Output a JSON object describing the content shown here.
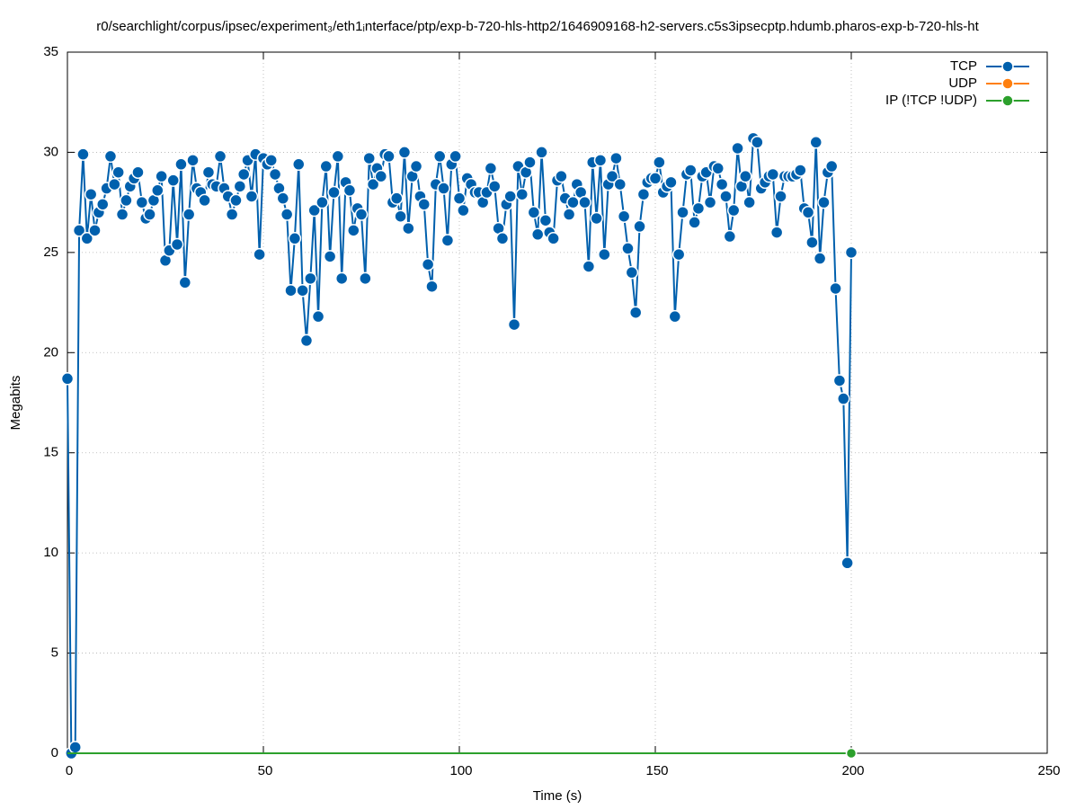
{
  "chart_data": {
    "type": "line",
    "title": "r0/searchlight/corpus/ipsec/experiment₃/eth1ᵢnterface/ptp/exp-b-720-hls-http2/1646909168-h2-servers.c5s3ipsecptp.hdumb.pharos-exp-b-720-hls-ht",
    "xlabel": "Time (s)",
    "ylabel": "Megabits",
    "xlim": [
      0,
      250
    ],
    "xticks": [
      0,
      50,
      100,
      150,
      200,
      250
    ],
    "ylim": [
      0,
      35
    ],
    "yticks": [
      0,
      5,
      10,
      15,
      20,
      25,
      30,
      35
    ],
    "grid": true,
    "legend": "top-right",
    "x": [
      0,
      1,
      2,
      3,
      4,
      5,
      6,
      7,
      8,
      9,
      10,
      11,
      12,
      13,
      14,
      15,
      16,
      17,
      18,
      19,
      20,
      21,
      22,
      23,
      24,
      25,
      26,
      27,
      28,
      29,
      30,
      31,
      32,
      33,
      34,
      35,
      36,
      37,
      38,
      39,
      40,
      41,
      42,
      43,
      44,
      45,
      46,
      47,
      48,
      49,
      50,
      51,
      52,
      53,
      54,
      55,
      56,
      57,
      58,
      59,
      60,
      61,
      62,
      63,
      64,
      65,
      66,
      67,
      68,
      69,
      70,
      71,
      72,
      73,
      74,
      75,
      76,
      77,
      78,
      79,
      80,
      81,
      82,
      83,
      84,
      85,
      86,
      87,
      88,
      89,
      90,
      91,
      92,
      93,
      94,
      95,
      96,
      97,
      98,
      99,
      100,
      101,
      102,
      103,
      104,
      105,
      106,
      107,
      108,
      109,
      110,
      111,
      112,
      113,
      114,
      115,
      116,
      117,
      118,
      119,
      120,
      121,
      122,
      123,
      124,
      125,
      126,
      127,
      128,
      129,
      130,
      131,
      132,
      133,
      134,
      135,
      136,
      137,
      138,
      139,
      140,
      141,
      142,
      143,
      144,
      145,
      146,
      147,
      148,
      149,
      150,
      151,
      152,
      153,
      154,
      155,
      156,
      157,
      158,
      159,
      160,
      161,
      162,
      163,
      164,
      165,
      166,
      167,
      168,
      169,
      170,
      171,
      172,
      173,
      174,
      175,
      176,
      177,
      178,
      179,
      180,
      181,
      182,
      183,
      184,
      185,
      186,
      187,
      188,
      189,
      190,
      191,
      192,
      193,
      194,
      195,
      196,
      197,
      198,
      199,
      200
    ],
    "series": [
      {
        "name": "TCP",
        "color": "#0060ad",
        "values": [
          18.7,
          0,
          0.3,
          26.1,
          29.9,
          25.7,
          27.9,
          26.1,
          27.0,
          27.4,
          28.2,
          29.8,
          28.4,
          29.0,
          26.9,
          27.6,
          28.3,
          28.7,
          29.0,
          27.5,
          26.7,
          26.9,
          27.6,
          28.1,
          28.8,
          24.6,
          25.1,
          28.6,
          25.4,
          29.4,
          23.5,
          26.9,
          29.6,
          28.2,
          28.0,
          27.6,
          29.0,
          28.4,
          28.3,
          29.8,
          28.2,
          27.8,
          26.9,
          27.6,
          28.3,
          28.9,
          29.6,
          27.8,
          29.9,
          24.9,
          29.7,
          29.4,
          29.6,
          28.9,
          28.2,
          27.7,
          26.9,
          23.1,
          25.7,
          29.4,
          23.1,
          20.6,
          23.7,
          27.1,
          21.8,
          27.5,
          29.3,
          24.8,
          28.0,
          29.8,
          23.7,
          28.5,
          28.1,
          26.1,
          27.2,
          26.9,
          23.7,
          29.7,
          28.4,
          29.2,
          28.8,
          29.9,
          29.8,
          27.5,
          27.7,
          26.8,
          30.0,
          26.2,
          28.8,
          29.3,
          27.8,
          27.4,
          24.4,
          23.3,
          28.4,
          29.8,
          28.2,
          25.6,
          29.4,
          29.8,
          27.7,
          27.1,
          28.7,
          28.4,
          28.0,
          28.0,
          27.5,
          28.0,
          29.2,
          28.3,
          26.2,
          25.7,
          27.4,
          27.8,
          21.4,
          29.3,
          27.9,
          29.0,
          29.5,
          27.0,
          25.9,
          30.0,
          26.6,
          26.0,
          25.7,
          28.6,
          28.8,
          27.7,
          26.9,
          27.5,
          28.4,
          28.0,
          27.5,
          24.3,
          29.5,
          26.7,
          29.6,
          24.9,
          28.4,
          28.8,
          29.7,
          28.4,
          26.8,
          25.2,
          24.0,
          22.0,
          26.3,
          27.9,
          28.5,
          28.7,
          28.7,
          29.5,
          28.0,
          28.3,
          28.5,
          21.8,
          24.9,
          27.0,
          28.9,
          29.1,
          26.5,
          27.2,
          28.8,
          29.0,
          27.5,
          29.3,
          29.2,
          28.4,
          27.8,
          25.8,
          27.1,
          30.2,
          28.3,
          28.8,
          27.5,
          30.7,
          30.5,
          28.2,
          28.5,
          28.8,
          28.9,
          26.0,
          27.8,
          28.8,
          28.8,
          28.8,
          28.9,
          29.1,
          27.2,
          27.0,
          25.5,
          30.5,
          24.7,
          27.5,
          29.0,
          29.3,
          23.2,
          18.6,
          17.7,
          9.5,
          25.0
        ]
      },
      {
        "name": "UDP",
        "color": "#ff7f0e",
        "values": [
          0,
          0,
          0,
          0,
          0,
          0,
          0,
          0,
          0,
          0,
          0,
          0,
          0,
          0,
          0,
          0,
          0,
          0,
          0,
          0,
          0,
          0,
          0,
          0,
          0,
          0,
          0,
          0,
          0,
          0,
          0,
          0,
          0,
          0,
          0,
          0,
          0,
          0,
          0,
          0,
          0,
          0,
          0,
          0,
          0,
          0,
          0,
          0,
          0,
          0,
          0,
          0,
          0,
          0,
          0,
          0,
          0,
          0,
          0,
          0,
          0,
          0,
          0,
          0,
          0,
          0,
          0,
          0,
          0,
          0,
          0,
          0,
          0,
          0,
          0,
          0,
          0,
          0,
          0,
          0,
          0,
          0,
          0,
          0,
          0,
          0,
          0,
          0,
          0,
          0,
          0,
          0,
          0,
          0,
          0,
          0,
          0,
          0,
          0,
          0,
          0,
          0,
          0,
          0,
          0,
          0,
          0,
          0,
          0,
          0,
          0,
          0,
          0,
          0,
          0,
          0,
          0,
          0,
          0,
          0,
          0,
          0,
          0,
          0,
          0,
          0,
          0,
          0,
          0,
          0,
          0,
          0,
          0,
          0,
          0,
          0,
          0,
          0,
          0,
          0,
          0,
          0,
          0,
          0,
          0,
          0,
          0,
          0,
          0,
          0,
          0,
          0,
          0,
          0,
          0,
          0,
          0,
          0,
          0,
          0,
          0,
          0,
          0,
          0,
          0,
          0,
          0,
          0,
          0,
          0,
          0,
          0,
          0,
          0,
          0,
          0,
          0,
          0,
          0,
          0,
          0,
          0,
          0,
          0,
          0,
          0,
          0,
          0,
          0,
          0,
          0,
          0,
          0,
          0,
          0,
          0,
          0,
          0,
          0,
          0,
          0
        ]
      },
      {
        "name": "IP (!TCP  !UDP)",
        "color": "#2ca02c",
        "values": [
          0,
          0,
          0,
          0,
          0,
          0,
          0,
          0,
          0,
          0,
          0,
          0,
          0,
          0,
          0,
          0,
          0,
          0,
          0,
          0,
          0,
          0,
          0,
          0,
          0,
          0,
          0,
          0,
          0,
          0,
          0,
          0,
          0,
          0,
          0,
          0,
          0,
          0,
          0,
          0,
          0,
          0,
          0,
          0,
          0,
          0,
          0,
          0,
          0,
          0,
          0,
          0,
          0,
          0,
          0,
          0,
          0,
          0,
          0,
          0,
          0,
          0,
          0,
          0,
          0,
          0,
          0,
          0,
          0,
          0,
          0,
          0,
          0,
          0,
          0,
          0,
          0,
          0,
          0,
          0,
          0,
          0,
          0,
          0,
          0,
          0,
          0,
          0,
          0,
          0,
          0,
          0,
          0,
          0,
          0,
          0,
          0,
          0,
          0,
          0,
          0,
          0,
          0,
          0,
          0,
          0,
          0,
          0,
          0,
          0,
          0,
          0,
          0,
          0,
          0,
          0,
          0,
          0,
          0,
          0,
          0,
          0,
          0,
          0,
          0,
          0,
          0,
          0,
          0,
          0,
          0,
          0,
          0,
          0,
          0,
          0,
          0,
          0,
          0,
          0,
          0,
          0,
          0,
          0,
          0,
          0,
          0,
          0,
          0,
          0,
          0,
          0,
          0,
          0,
          0,
          0,
          0,
          0,
          0,
          0,
          0,
          0,
          0,
          0,
          0,
          0,
          0,
          0,
          0,
          0,
          0,
          0,
          0,
          0,
          0,
          0,
          0,
          0,
          0,
          0,
          0,
          0,
          0,
          0,
          0,
          0,
          0,
          0,
          0,
          0,
          0,
          0,
          0,
          0,
          0,
          0,
          0,
          0,
          0,
          0,
          0
        ]
      }
    ]
  }
}
